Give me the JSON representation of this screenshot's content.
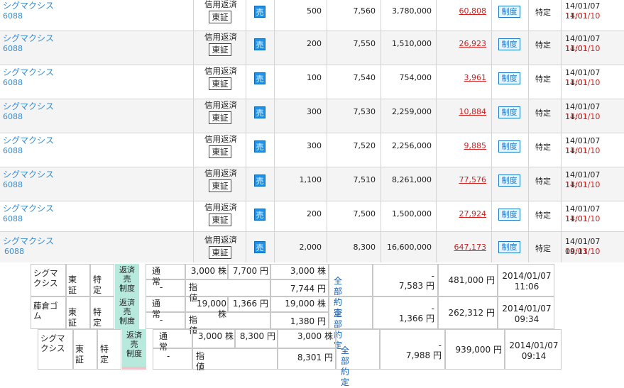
{
  "trades": [
    {
      "name": "シグマクシス",
      "code": "6088",
      "type": "信用返済",
      "exchange": "東証",
      "side": "売",
      "qty": "500",
      "price": "7,560",
      "amount": "3,780,000",
      "pl": "60,808",
      "system": "制度",
      "account": "特定",
      "date1": "14/01/07 11:01",
      "date2": "14/01/10"
    },
    {
      "name": "シグマクシス",
      "code": "6088",
      "type": "信用返済",
      "exchange": "東証",
      "side": "売",
      "qty": "200",
      "price": "7,550",
      "amount": "1,510,000",
      "pl": "26,923",
      "system": "制度",
      "account": "特定",
      "date1": "14/01/07 11:01",
      "date2": "14/01/10"
    },
    {
      "name": "シグマクシス",
      "code": "6088",
      "type": "信用返済",
      "exchange": "東証",
      "side": "売",
      "qty": "100",
      "price": "7,540",
      "amount": "754,000",
      "pl": "3,961",
      "system": "制度",
      "account": "特定",
      "date1": "14/01/07 11:01",
      "date2": "14/01/10"
    },
    {
      "name": "シグマクシス",
      "code": "6088",
      "type": "信用返済",
      "exchange": "東証",
      "side": "売",
      "qty": "300",
      "price": "7,530",
      "amount": "2,259,000",
      "pl": "10,884",
      "system": "制度",
      "account": "特定",
      "date1": "14/01/07 11:01",
      "date2": "14/01/10"
    },
    {
      "name": "シグマクシス",
      "code": "6088",
      "type": "信用返済",
      "exchange": "東証",
      "side": "売",
      "qty": "300",
      "price": "7,520",
      "amount": "2,256,000",
      "pl": "9,885",
      "system": "制度",
      "account": "特定",
      "date1": "14/01/07 11:01",
      "date2": "14/01/10"
    },
    {
      "name": "シグマクシス",
      "code": "6088",
      "type": "信用返済",
      "exchange": "東証",
      "side": "売",
      "qty": "1,100",
      "price": "7,510",
      "amount": "8,261,000",
      "pl": "77,576",
      "system": "制度",
      "account": "特定",
      "date1": "14/01/07 11:01",
      "date2": "14/01/10"
    },
    {
      "name": "シグマクシス",
      "code": "6088",
      "type": "信用返済",
      "exchange": "東証",
      "side": "売",
      "qty": "200",
      "price": "7,500",
      "amount": "1,500,000",
      "pl": "27,924",
      "system": "制度",
      "account": "特定",
      "date1": "14/01/07 11:01",
      "date2": "14/01/10"
    },
    {
      "name": "シグマクシス",
      "code": "6088",
      "type": "信用返済",
      "exchange": "東証",
      "side": "売",
      "qty": "2,000",
      "price": "8,300",
      "amount": "16,600,000",
      "pl": "647,173",
      "system": "制度",
      "account": "特定",
      "date1": "14/01/07 09:13",
      "date2": "14/01/10"
    }
  ],
  "orders": [
    {
      "name": "シグマクシス",
      "market": "東証",
      "account": "特定",
      "category": [
        "返済",
        "売",
        "制度"
      ],
      "condition": "通常",
      "qty": "3,000 株",
      "price": "7,700 円",
      "dash": "-",
      "price_type": "指値",
      "exec_qty": "3,000 株",
      "exec_price": "7,744 円",
      "status": "全部約定",
      "dash2": "-",
      "avg_price": "7,583 円",
      "pl": "481,000 円",
      "date": "2014/01/07",
      "time": "11:06"
    },
    {
      "name": "藤倉ゴム",
      "market": "東証",
      "account": "特定",
      "category": [
        "返済",
        "売",
        "制度"
      ],
      "condition": "通常",
      "qty": "19,000 株",
      "price": "1,366 円",
      "dash": "-",
      "price_type": "指値",
      "exec_qty": "19,000 株",
      "exec_price": "1,380 円",
      "status": "全部約定",
      "dash2": "-",
      "avg_price": "1,366 円",
      "pl": "262,312 円",
      "date": "2014/01/07",
      "time": "09:34"
    },
    {
      "name": "シグマクシス",
      "market": "東証",
      "account": "特定",
      "category": [
        "返済",
        "売",
        "制度"
      ],
      "condition": "通常",
      "qty": "3,000 株",
      "price": "8,300 円",
      "dash": "-",
      "price_type": "指値",
      "exec_qty": "3,000 株",
      "exec_price": "8,301 円",
      "status": "全部約定",
      "dash2": "-",
      "avg_price": "7,988 円",
      "pl": "939,000 円",
      "date": "2014/01/07",
      "time": "09:14"
    }
  ],
  "colors": {
    "link": "#3a8ccf",
    "loss_red": "#cc2222",
    "sell_blue": "#1e90e6",
    "category_teal": "#b7e9dd"
  }
}
